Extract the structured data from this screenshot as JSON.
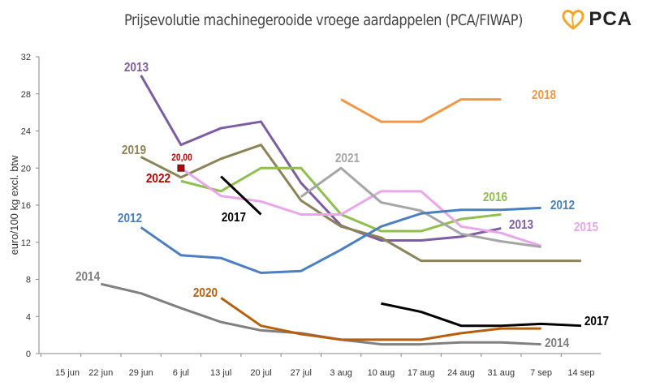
{
  "logo": {
    "text": "PCA"
  },
  "chart_data": {
    "type": "line",
    "title": "Prijsevolutie machinegerooide vroege aardappelen (PCA/FIWAP)",
    "xlabel": "",
    "ylabel": "euro/100 kg excl. btw",
    "ylim": [
      0,
      32
    ],
    "yticks": [
      0,
      4,
      8,
      12,
      16,
      20,
      24,
      28,
      32
    ],
    "categories": [
      "15 jun",
      "22 jun",
      "29 jun",
      "6 jul",
      "13 jul",
      "20 jul",
      "27 jul",
      "3 aug",
      "10 aug",
      "17 aug",
      "24 aug",
      "31 aug",
      "7 sep",
      "14 sep"
    ],
    "grid": false,
    "series": [
      {
        "name": "2013",
        "color": "#7e5ca3",
        "values": [
          null,
          null,
          30.0,
          22.5,
          24.3,
          25.0,
          18.4,
          13.8,
          12.2,
          12.2,
          12.6,
          13.5,
          null,
          null
        ]
      },
      {
        "name": "2019",
        "color": "#8b8456",
        "values": [
          null,
          null,
          21.2,
          19.0,
          21.0,
          22.5,
          16.5,
          13.7,
          12.5,
          10,
          10,
          10,
          10,
          10
        ]
      },
      {
        "name": "2016",
        "color": "#8fbf4d",
        "values": [
          null,
          null,
          null,
          18.6,
          17.5,
          20,
          20,
          15,
          13.2,
          13.2,
          14.5,
          15,
          null,
          null
        ]
      },
      {
        "name": "2015",
        "color": "#eaa6ea",
        "values": [
          null,
          null,
          null,
          20,
          17,
          16.4,
          15,
          15,
          17.5,
          17.5,
          13.7,
          13.0,
          11.6,
          null
        ]
      },
      {
        "name": "2021",
        "color": "#a6a6a6",
        "values": [
          null,
          null,
          null,
          null,
          null,
          null,
          16.9,
          20,
          16.3,
          15.4,
          12.9,
          12.1,
          11.5,
          null
        ]
      },
      {
        "name": "2012",
        "color": "#4a7fc0",
        "values": [
          null,
          null,
          13.6,
          10.6,
          10.3,
          8.7,
          8.9,
          11.2,
          13.7,
          15.1,
          15.5,
          15.5,
          15.7,
          null
        ]
      },
      {
        "name": "2018",
        "color": "#f39744",
        "values": [
          null,
          null,
          null,
          null,
          null,
          null,
          null,
          27.4,
          25,
          25,
          27.4,
          27.4,
          null,
          null
        ]
      },
      {
        "name": "2017",
        "color": "#000000",
        "values": [
          null,
          null,
          null,
          null,
          19.1,
          15,
          null,
          null,
          5.4,
          4.5,
          3,
          3,
          3.2,
          3
        ]
      },
      {
        "name": "2014",
        "color": "#808080",
        "values": [
          null,
          7.5,
          6.5,
          4.9,
          3.4,
          2.5,
          2.2,
          1.5,
          1,
          1,
          1.2,
          1.2,
          1.0,
          null
        ]
      },
      {
        "name": "2020",
        "color": "#b85f0e",
        "values": [
          null,
          null,
          null,
          null,
          6,
          3,
          2.1,
          1.5,
          1.5,
          1.5,
          2.2,
          2.7,
          2.7,
          null
        ]
      },
      {
        "name": "2022",
        "color": "#c00000",
        "values": [
          null,
          null,
          null,
          20,
          null,
          null,
          null,
          null,
          null,
          null,
          null,
          null,
          null,
          null
        ]
      }
    ],
    "annotations": [
      {
        "text": "2013",
        "series": "2013"
      },
      {
        "text": "2013",
        "series": "2013"
      },
      {
        "text": "2019",
        "series": "2019"
      },
      {
        "text": "2016",
        "series": "2016"
      },
      {
        "text": "2015",
        "series": "2015"
      },
      {
        "text": "2021",
        "series": "2021"
      },
      {
        "text": "2012",
        "series": "2012"
      },
      {
        "text": "2012",
        "series": "2012"
      },
      {
        "text": "2018",
        "series": "2018"
      },
      {
        "text": "2017",
        "series": "2017"
      },
      {
        "text": "2017",
        "series": "2017"
      },
      {
        "text": "2014",
        "series": "2014"
      },
      {
        "text": "2014",
        "series": "2014"
      },
      {
        "text": "2020",
        "series": "2020"
      },
      {
        "text": "2022",
        "series": "2022"
      },
      {
        "text": "20,00",
        "series": "2022"
      }
    ]
  }
}
